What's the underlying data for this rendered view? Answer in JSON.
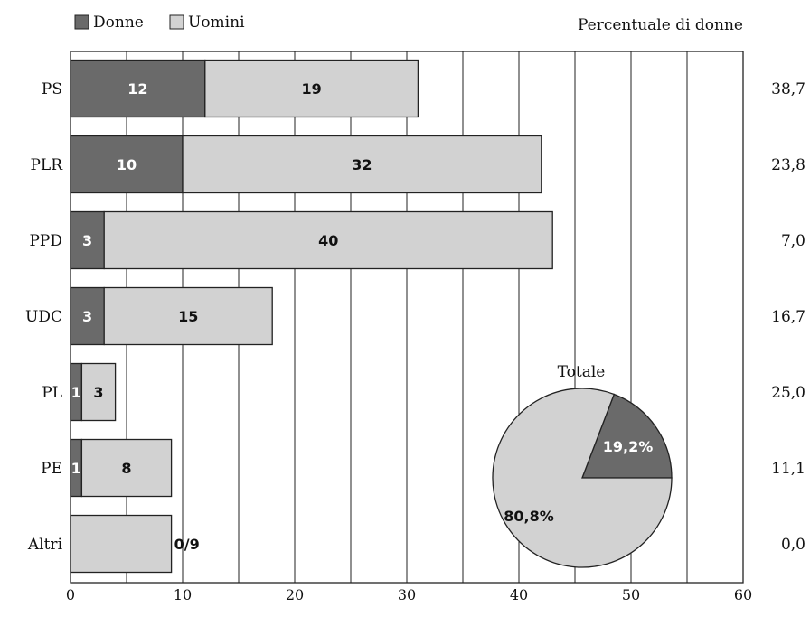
{
  "chart_data": {
    "type": "bar",
    "orientation": "horizontal",
    "stacked": true,
    "categories": [
      "PS",
      "PLR",
      "PPD",
      "UDC",
      "PL",
      "PE",
      "Altri"
    ],
    "series": [
      {
        "name": "Donne",
        "values": [
          12,
          10,
          3,
          3,
          1,
          1,
          0
        ],
        "color": "#6a6a6a"
      },
      {
        "name": "Uomini",
        "values": [
          19,
          32,
          40,
          15,
          3,
          8,
          9
        ],
        "color": "#d2d2d2"
      }
    ],
    "bar_labels": [
      {
        "donne": "12",
        "uomini": "19"
      },
      {
        "donne": "10",
        "uomini": "32"
      },
      {
        "donne": "3",
        "uomini": "40"
      },
      {
        "donne": "3",
        "uomini": "15"
      },
      {
        "donne": "1",
        "uomini": "3"
      },
      {
        "donne": "1",
        "uomini": "8"
      },
      {
        "donne": "",
        "uomini": "",
        "outside": "0/9"
      }
    ],
    "right_axis_title": "Percentuale di donne",
    "percent_women": [
      "38,7",
      "23,8",
      "7,0",
      "16,7",
      "25,0",
      "11,1",
      "0,0"
    ],
    "xlim": [
      0,
      60
    ],
    "x_ticks": [
      "0",
      "10",
      "20",
      "30",
      "40",
      "50",
      "60"
    ],
    "grid": {
      "vertical": true,
      "step": 5
    },
    "legend_position": "top-left",
    "pie": {
      "title": "Totale",
      "slices": [
        {
          "label": "19,2%",
          "value": 19.2,
          "color": "#6a6a6a"
        },
        {
          "label": "80,8%",
          "value": 80.8,
          "color": "#d2d2d2"
        }
      ]
    }
  }
}
